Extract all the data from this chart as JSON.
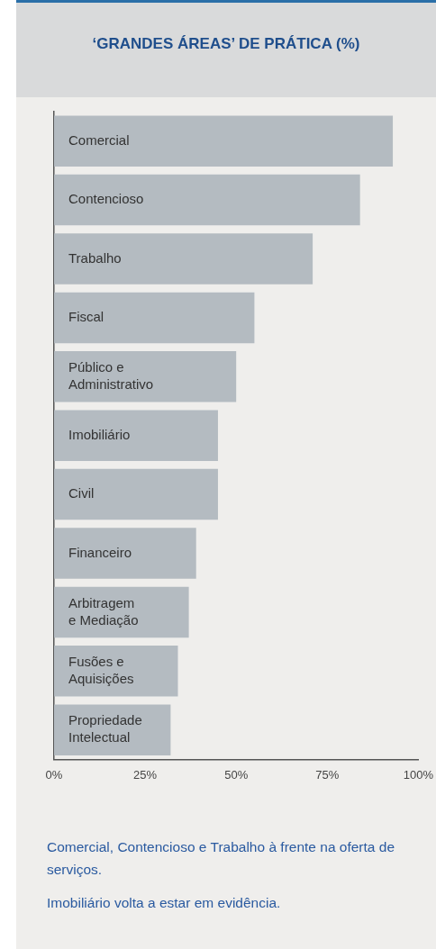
{
  "chart_data": {
    "type": "bar",
    "orientation": "horizontal",
    "title": "‘GRANDES ÁREAS’ DE PRÁTICA  (%)",
    "categories": [
      "Comercial",
      "Contencioso",
      "Trabalho",
      "Fiscal",
      "Público e Administrativo",
      "Imobiliário",
      "Civil",
      "Financeiro",
      "Arbitragem e Mediação",
      "Fusões e Aquisições",
      "Propriedade Intelectual"
    ],
    "values": [
      93,
      84,
      71,
      55,
      50,
      45,
      45,
      39,
      37,
      34,
      32
    ],
    "color": "#b4bbc1",
    "xlim": [
      0,
      100
    ],
    "xticks": [
      {
        "value": 0,
        "label": "0%"
      },
      {
        "value": 25,
        "label": "25%"
      },
      {
        "value": 50,
        "label": "50%"
      },
      {
        "value": 75,
        "label": "75%"
      },
      {
        "value": 100,
        "label": "100%"
      }
    ],
    "grid": false,
    "legend": false,
    "annotations": [
      "Comercial, Contencioso e Trabalho à frente na oferta de serviços.",
      "Imobiliário volta a estar em evidência."
    ]
  }
}
